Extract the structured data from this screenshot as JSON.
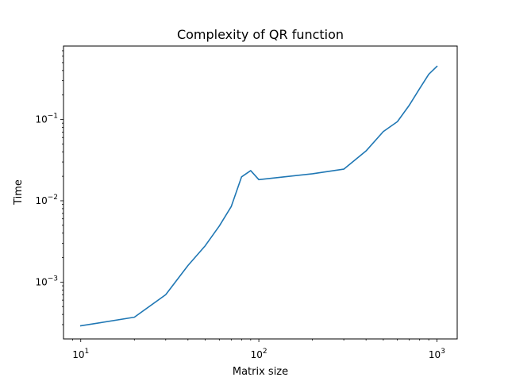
{
  "chart_data": {
    "type": "line",
    "title": "Complexity of QR function",
    "xlabel": "Matrix size",
    "ylabel": "Time",
    "xscale": "log",
    "yscale": "log",
    "xlim": [
      8,
      1300
    ],
    "ylim": [
      0.0002,
      0.8
    ],
    "x_ticks": [
      {
        "value": 10,
        "base": "10",
        "exp": "1"
      },
      {
        "value": 100,
        "base": "10",
        "exp": "2"
      },
      {
        "value": 1000,
        "base": "10",
        "exp": "3"
      }
    ],
    "y_ticks": [
      {
        "value": 0.001,
        "base": "10",
        "exp": "−3"
      },
      {
        "value": 0.01,
        "base": "10",
        "exp": "−2"
      },
      {
        "value": 0.1,
        "base": "10",
        "exp": "−1"
      }
    ],
    "grid": false,
    "color": "#1f77b4",
    "series": [
      {
        "x": [
          10,
          20,
          30,
          40,
          50,
          60,
          70,
          80,
          90,
          100,
          200,
          300,
          400,
          500,
          600,
          700,
          800,
          900,
          1000
        ],
        "y": [
          0.00029,
          0.00037,
          0.0007,
          0.0016,
          0.0028,
          0.0049,
          0.0085,
          0.0197,
          0.0235,
          0.0182,
          0.0215,
          0.0245,
          0.041,
          0.071,
          0.094,
          0.15,
          0.24,
          0.36,
          0.45
        ]
      }
    ]
  }
}
